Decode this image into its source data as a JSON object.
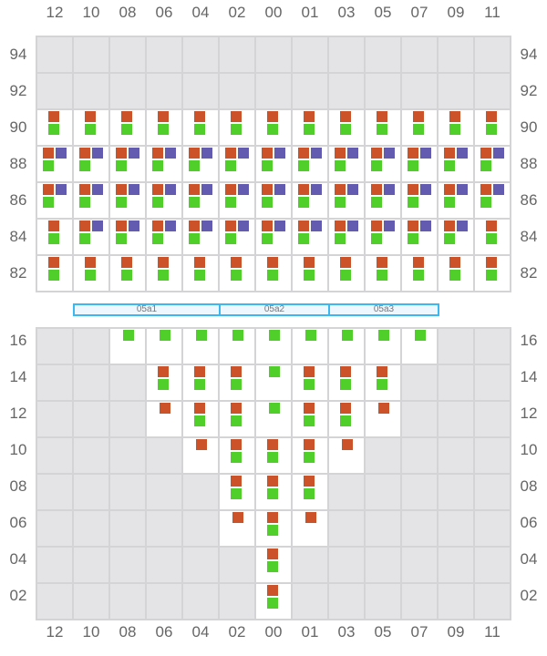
{
  "columns": [
    "12",
    "10",
    "08",
    "06",
    "04",
    "02",
    "00",
    "01",
    "03",
    "05",
    "07",
    "09",
    "11"
  ],
  "colors": {
    "orange": "#cc5229",
    "purple": "#635bb0",
    "green": "#50ce2a",
    "disabled": "#e4e4e6",
    "border": "#d4d4d6",
    "band_border": "#3bb8f0"
  },
  "legend_codes": {
    "x": "disabled",
    "o": "orange",
    "p": "purple",
    "g": "green"
  },
  "top_grid": {
    "rows": [
      {
        "label": "94",
        "cells": [
          "x",
          "x",
          "x",
          "x",
          "x",
          "x",
          "x",
          "x",
          "x",
          "x",
          "x",
          "x",
          "x"
        ]
      },
      {
        "label": "92",
        "cells": [
          "x",
          "x",
          "x",
          "x",
          "x",
          "x",
          "x",
          "x",
          "x",
          "x",
          "x",
          "x",
          "x"
        ]
      },
      {
        "label": "90",
        "cells": [
          "og",
          "og",
          "og",
          "og",
          "og",
          "og",
          "og",
          "og",
          "og",
          "og",
          "og",
          "og",
          "og"
        ]
      },
      {
        "label": "88",
        "cells": [
          "opg",
          "opg",
          "opg",
          "opg",
          "opg",
          "opg",
          "opg",
          "opg",
          "opg",
          "opg",
          "opg",
          "opg",
          "opg"
        ]
      },
      {
        "label": "86",
        "cells": [
          "opg",
          "opg",
          "opg",
          "opg",
          "opg",
          "opg",
          "opg",
          "opg",
          "opg",
          "opg",
          "opg",
          "opg",
          "opg"
        ]
      },
      {
        "label": "84",
        "cells": [
          "og",
          "opg",
          "opg",
          "opg",
          "opg",
          "opg",
          "opg",
          "opg",
          "opg",
          "opg",
          "opg",
          "opg",
          "og"
        ]
      },
      {
        "label": "82",
        "cells": [
          "og",
          "og",
          "og",
          "og",
          "og",
          "og",
          "og",
          "og",
          "og",
          "og",
          "og",
          "og",
          "og"
        ]
      }
    ]
  },
  "bands": [
    {
      "label": "05a1",
      "from_col": "10",
      "to_col": "04"
    },
    {
      "label": "05a2",
      "from_col": "02",
      "to_col": "01"
    },
    {
      "label": "05a3",
      "from_col": "03",
      "to_col": "07"
    }
  ],
  "bottom_grid": {
    "rows": [
      {
        "label": "16",
        "cells": [
          "x",
          "x",
          "g",
          "g",
          "g",
          "g",
          "g",
          "g",
          "g",
          "g",
          "g",
          "x",
          "x"
        ]
      },
      {
        "label": "14",
        "cells": [
          "x",
          "x",
          "x",
          "og",
          "og",
          "og",
          "g",
          "og",
          "og",
          "og",
          "x",
          "x",
          "x"
        ]
      },
      {
        "label": "12",
        "cells": [
          "x",
          "x",
          "x",
          "o",
          "og",
          "og",
          "g",
          "og",
          "og",
          "o",
          "x",
          "x",
          "x"
        ]
      },
      {
        "label": "10",
        "cells": [
          "x",
          "x",
          "x",
          "x",
          "o",
          "og",
          "og",
          "og",
          "o",
          "x",
          "x",
          "x",
          "x"
        ]
      },
      {
        "label": "08",
        "cells": [
          "x",
          "x",
          "x",
          "x",
          "x",
          "og",
          "og",
          "og",
          "x",
          "x",
          "x",
          "x",
          "x"
        ]
      },
      {
        "label": "06",
        "cells": [
          "x",
          "x",
          "x",
          "x",
          "x",
          "o",
          "og",
          "o",
          "x",
          "x",
          "x",
          "x",
          "x"
        ]
      },
      {
        "label": "04",
        "cells": [
          "x",
          "x",
          "x",
          "x",
          "x",
          "x",
          "og",
          "x",
          "x",
          "x",
          "x",
          "x",
          "x"
        ]
      },
      {
        "label": "02",
        "cells": [
          "x",
          "x",
          "x",
          "x",
          "x",
          "x",
          "og",
          "x",
          "x",
          "x",
          "x",
          "x",
          "x"
        ]
      }
    ]
  }
}
